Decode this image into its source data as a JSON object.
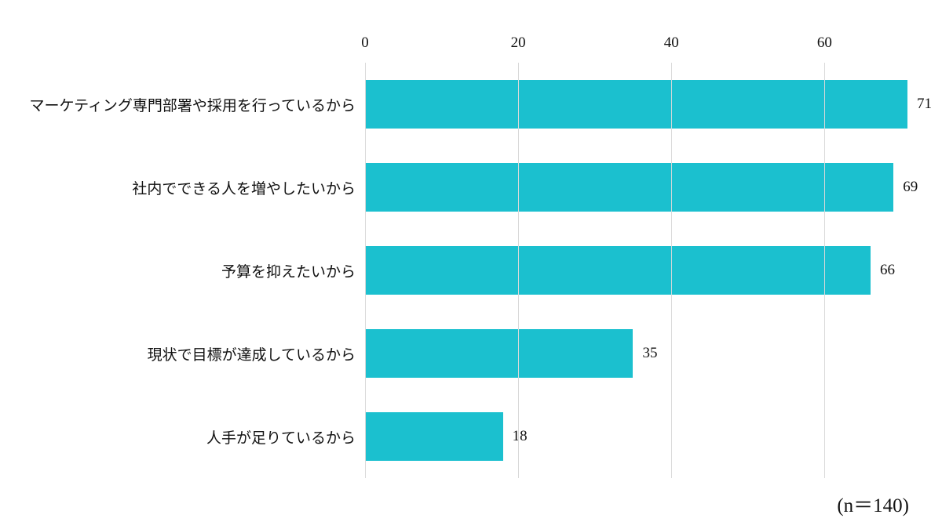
{
  "chart_data": {
    "type": "bar",
    "orientation": "horizontal",
    "title": "",
    "xlabel": "",
    "ylabel": "",
    "categories": [
      "マーケティング専門部署や採用を行っているから",
      "社内でできる人を増やしたいから",
      "予算を抑えたいから",
      "現状で目標が達成しているから",
      "人手が足りているから"
    ],
    "values": [
      71,
      69,
      66,
      35,
      18
    ],
    "xticks": [
      0,
      20,
      40,
      60
    ],
    "xlim": [
      0,
      74
    ],
    "grid": "vertical",
    "legend": "none",
    "bar_color": "#1bc0cf",
    "gridline_color": "#d9d9d9",
    "annotation": "(n＝140)"
  }
}
